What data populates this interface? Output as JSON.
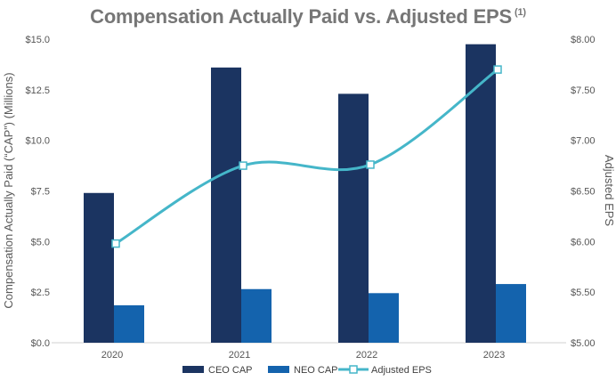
{
  "chart_data": {
    "type": "bar",
    "title": "Compensation Actually Paid vs. Adjusted EPS",
    "title_note": "(1)",
    "categories": [
      "2020",
      "2021",
      "2022",
      "2023"
    ],
    "series": [
      {
        "name": "CEO CAP",
        "type": "bar",
        "axis": "left",
        "values": [
          7.4,
          13.6,
          12.3,
          14.75
        ],
        "color": "#1b3461"
      },
      {
        "name": "NEO CAP",
        "type": "bar",
        "axis": "left",
        "values": [
          1.85,
          2.65,
          2.45,
          2.9
        ],
        "color": "#1463ad"
      },
      {
        "name": "Adjusted EPS",
        "type": "line",
        "axis": "right",
        "values": [
          5.98,
          6.75,
          6.76,
          7.7
        ],
        "color": "#45b6c9"
      }
    ],
    "ylabel": "Compensation Actually Paid (“CAP”) (Millions)",
    "y2label": "Adjusted EPS",
    "ylim": [
      0,
      15
    ],
    "y2lim": [
      5,
      8
    ],
    "yticks": [
      "$0.0",
      "$2.5",
      "$5.0",
      "$7.5",
      "$10.0",
      "$12.5",
      "$15.0"
    ],
    "y2ticks": [
      "$5.00",
      "$5.50",
      "$6.00",
      "$6.50",
      "$7.00",
      "$7.50",
      "$8.00"
    ],
    "legend_position": "bottom"
  }
}
